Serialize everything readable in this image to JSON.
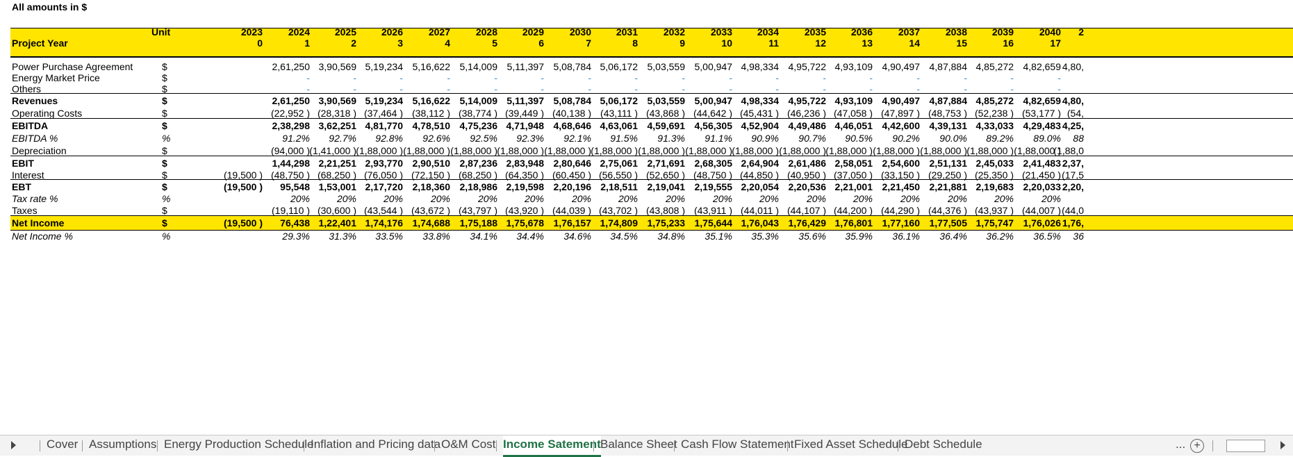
{
  "top_label": "All amounts in $",
  "header": {
    "unit_label": "Unit",
    "project_year_label": "Project Year",
    "years": [
      "2023",
      "2024",
      "2025",
      "2026",
      "2027",
      "2028",
      "2029",
      "2030",
      "2031",
      "2032",
      "2033",
      "2034",
      "2035",
      "2036",
      "2037",
      "2038",
      "2039",
      "2040",
      "2"
    ],
    "project_years": [
      "0",
      "1",
      "2",
      "3",
      "4",
      "5",
      "6",
      "7",
      "8",
      "9",
      "10",
      "11",
      "12",
      "13",
      "14",
      "15",
      "16",
      "17",
      ""
    ]
  },
  "rows": [
    {
      "label": "Power Purchase Agreement",
      "unit": "$",
      "values": [
        "",
        "2,61,250",
        "3,90,569",
        "5,19,234",
        "5,16,622",
        "5,14,009",
        "5,11,397",
        "5,08,784",
        "5,06,172",
        "5,03,559",
        "5,00,947",
        "4,98,334",
        "4,95,722",
        "4,93,109",
        "4,90,497",
        "4,87,884",
        "4,85,272",
        "4,82,659",
        "4,80,"
      ]
    },
    {
      "label": "Energy Market Price",
      "unit": "$",
      "values": [
        "",
        "-",
        "-",
        "-",
        "-",
        "-",
        "-",
        "-",
        "-",
        "-",
        "-",
        "-",
        "-",
        "-",
        "-",
        "-",
        "-",
        "-",
        ""
      ]
    },
    {
      "label": "Others",
      "unit": "$",
      "values": [
        "",
        "-",
        "-",
        "-",
        "-",
        "-",
        "-",
        "-",
        "-",
        "-",
        "-",
        "-",
        "-",
        "-",
        "-",
        "-",
        "-",
        "-",
        ""
      ]
    },
    {
      "label": "Revenues",
      "unit": "$",
      "values": [
        "",
        "2,61,250",
        "3,90,569",
        "5,19,234",
        "5,16,622",
        "5,14,009",
        "5,11,397",
        "5,08,784",
        "5,06,172",
        "5,03,559",
        "5,00,947",
        "4,98,334",
        "4,95,722",
        "4,93,109",
        "4,90,497",
        "4,87,884",
        "4,85,272",
        "4,82,659",
        "4,80,"
      ]
    },
    {
      "label": "Operating Costs",
      "unit": "$",
      "values": [
        "",
        "(22,952 )",
        "(28,318 )",
        "(37,464 )",
        "(38,112 )",
        "(38,774 )",
        "(39,449 )",
        "(40,138 )",
        "(43,111 )",
        "(43,868 )",
        "(44,642 )",
        "(45,431 )",
        "(46,236 )",
        "(47,058 )",
        "(47,897 )",
        "(48,753 )",
        "(52,238 )",
        "(53,177 )",
        "(54,"
      ]
    },
    {
      "label": "EBITDA",
      "unit": "$",
      "values": [
        "",
        "2,38,298",
        "3,62,251",
        "4,81,770",
        "4,78,510",
        "4,75,236",
        "4,71,948",
        "4,68,646",
        "4,63,061",
        "4,59,691",
        "4,56,305",
        "4,52,904",
        "4,49,486",
        "4,46,051",
        "4,42,600",
        "4,39,131",
        "4,33,033",
        "4,29,483",
        "4,25,"
      ]
    },
    {
      "label": "EBITDA %",
      "unit": "%",
      "values": [
        "",
        "91.2%",
        "92.7%",
        "92.8%",
        "92.6%",
        "92.5%",
        "92.3%",
        "92.1%",
        "91.5%",
        "91.3%",
        "91.1%",
        "90.9%",
        "90.7%",
        "90.5%",
        "90.2%",
        "90.0%",
        "89.2%",
        "89.0%",
        "88"
      ]
    },
    {
      "label": "Depreciation",
      "unit": "$",
      "values": [
        "",
        "(94,000 )",
        "(1,41,000 )",
        "(1,88,000 )",
        "(1,88,000 )",
        "(1,88,000 )",
        "(1,88,000 )",
        "(1,88,000 )",
        "(1,88,000 )",
        "(1,88,000 )",
        "(1,88,000 )",
        "(1,88,000 )",
        "(1,88,000 )",
        "(1,88,000 )",
        "(1,88,000 )",
        "(1,88,000 )",
        "(1,88,000 )",
        "(1,88,000 )",
        "(1,88,0"
      ]
    },
    {
      "label": "EBIT",
      "unit": "$",
      "values": [
        "",
        "1,44,298",
        "2,21,251",
        "2,93,770",
        "2,90,510",
        "2,87,236",
        "2,83,948",
        "2,80,646",
        "2,75,061",
        "2,71,691",
        "2,68,305",
        "2,64,904",
        "2,61,486",
        "2,58,051",
        "2,54,600",
        "2,51,131",
        "2,45,033",
        "2,41,483",
        "2,37,"
      ]
    },
    {
      "label": "Interest",
      "unit": "$",
      "values": [
        "(19,500 )",
        "(48,750 )",
        "(68,250 )",
        "(76,050 )",
        "(72,150 )",
        "(68,250 )",
        "(64,350 )",
        "(60,450 )",
        "(56,550 )",
        "(52,650 )",
        "(48,750 )",
        "(44,850 )",
        "(40,950 )",
        "(37,050 )",
        "(33,150 )",
        "(29,250 )",
        "(25,350 )",
        "(21,450 )",
        "(17,5"
      ]
    },
    {
      "label": "EBT",
      "unit": "$",
      "values": [
        "(19,500 )",
        "95,548",
        "1,53,001",
        "2,17,720",
        "2,18,360",
        "2,18,986",
        "2,19,598",
        "2,20,196",
        "2,18,511",
        "2,19,041",
        "2,19,555",
        "2,20,054",
        "2,20,536",
        "2,21,001",
        "2,21,450",
        "2,21,881",
        "2,19,683",
        "2,20,033",
        "2,20,"
      ]
    },
    {
      "label": "Tax rate %",
      "unit": "%",
      "values": [
        "",
        "20%",
        "20%",
        "20%",
        "20%",
        "20%",
        "20%",
        "20%",
        "20%",
        "20%",
        "20%",
        "20%",
        "20%",
        "20%",
        "20%",
        "20%",
        "20%",
        "20%",
        ""
      ]
    },
    {
      "label": "Taxes",
      "unit": "$",
      "values": [
        "",
        "(19,110 )",
        "(30,600 )",
        "(43,544 )",
        "(43,672 )",
        "(43,797 )",
        "(43,920 )",
        "(44,039 )",
        "(43,702 )",
        "(43,808 )",
        "(43,911 )",
        "(44,011 )",
        "(44,107 )",
        "(44,200 )",
        "(44,290 )",
        "(44,376 )",
        "(43,937 )",
        "(44,007 )",
        "(44,0"
      ]
    },
    {
      "label": "Net Income",
      "unit": "$",
      "values": [
        "(19,500 )",
        "76,438",
        "1,22,401",
        "1,74,176",
        "1,74,688",
        "1,75,188",
        "1,75,678",
        "1,76,157",
        "1,74,809",
        "1,75,233",
        "1,75,644",
        "1,76,043",
        "1,76,429",
        "1,76,801",
        "1,77,160",
        "1,77,505",
        "1,75,747",
        "1,76,026",
        "1,76,"
      ]
    },
    {
      "label": "Net Income %",
      "unit": "%",
      "values": [
        "",
        "29.3%",
        "31.3%",
        "33.5%",
        "33.8%",
        "34.1%",
        "34.4%",
        "34.6%",
        "34.5%",
        "34.8%",
        "35.1%",
        "35.3%",
        "35.6%",
        "35.9%",
        "36.1%",
        "36.4%",
        "36.2%",
        "36.5%",
        "36"
      ]
    }
  ],
  "tabs": [
    {
      "label": "Cover",
      "active": false
    },
    {
      "label": "Assumptions",
      "active": false
    },
    {
      "label": "Energy Production Schedule",
      "active": false
    },
    {
      "label": "Inflation and Pricing data",
      "active": false
    },
    {
      "label": "O&M Cost",
      "active": false
    },
    {
      "label": "Income Satement",
      "active": true
    },
    {
      "label": "Balance Sheet",
      "active": false
    },
    {
      "label": "Cash Flow Statement",
      "active": false
    },
    {
      "label": "Fixed Asset Schedule",
      "active": false
    },
    {
      "label": "Debt Schedule",
      "active": false
    }
  ],
  "tab_overflow": "...",
  "colors": {
    "header_fill": "#ffe500",
    "active_tab": "#1f7246",
    "dash": "#3a8fd0"
  }
}
